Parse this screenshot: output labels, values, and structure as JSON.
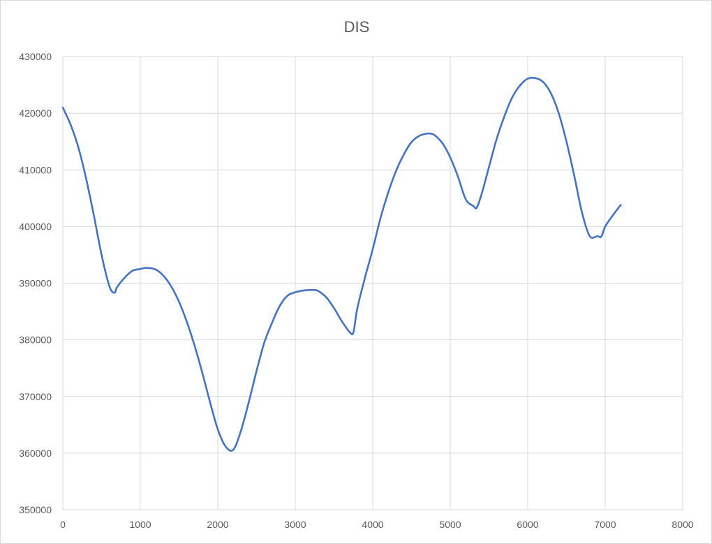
{
  "chart_data": {
    "type": "line",
    "title": "DIS",
    "xlabel": "",
    "ylabel": "",
    "xlim": [
      0,
      8000
    ],
    "ylim": [
      350000,
      430000
    ],
    "xticks": [
      0,
      1000,
      2000,
      3000,
      4000,
      5000,
      6000,
      7000,
      8000
    ],
    "yticks": [
      350000,
      360000,
      370000,
      380000,
      390000,
      400000,
      410000,
      420000,
      430000
    ],
    "grid": true,
    "legend": "none",
    "colors": {
      "series": "#4472c4",
      "grid": "#d9d9d9",
      "text": "#595959"
    },
    "series": [
      {
        "x": [
          0,
          100,
          200,
          300,
          400,
          500,
          600,
          665,
          700,
          800,
          900,
          1000,
          1080,
          1200,
          1300,
          1400,
          1500,
          1600,
          1700,
          1800,
          1900,
          2000,
          2100,
          2200,
          2300,
          2400,
          2500,
          2600,
          2700,
          2800,
          2900,
          3000,
          3100,
          3200,
          3250,
          3300,
          3400,
          3500,
          3600,
          3700,
          3750,
          3800,
          3900,
          4000,
          4100,
          4200,
          4300,
          4400,
          4500,
          4600,
          4700,
          4750,
          4800,
          4900,
          5000,
          5100,
          5200,
          5300,
          5340,
          5400,
          5500,
          5600,
          5700,
          5800,
          5900,
          6000,
          6100,
          6200,
          6300,
          6400,
          6500,
          6600,
          6700,
          6800,
          6900,
          6950,
          7000,
          7100,
          7200
        ],
        "values": [
          421000,
          418000,
          414000,
          408500,
          402000,
          395000,
          389500,
          388300,
          389300,
          391000,
          392200,
          392500,
          392700,
          392400,
          391300,
          389400,
          386700,
          383200,
          379000,
          374200,
          369000,
          364200,
          361200,
          360600,
          364000,
          369000,
          374500,
          379500,
          383000,
          386000,
          387800,
          388400,
          388700,
          388800,
          388800,
          388600,
          387500,
          385600,
          383300,
          381400,
          381300,
          385500,
          391000,
          396000,
          401500,
          406000,
          409800,
          412700,
          414900,
          416000,
          416400,
          416400,
          416100,
          414700,
          412200,
          408800,
          404800,
          403600,
          403300,
          405500,
          410500,
          415500,
          419500,
          422800,
          424900,
          426100,
          426200,
          425500,
          423500,
          420000,
          415000,
          409000,
          402500,
          398300,
          398300,
          398200,
          400000,
          402000,
          403800
        ]
      }
    ]
  }
}
